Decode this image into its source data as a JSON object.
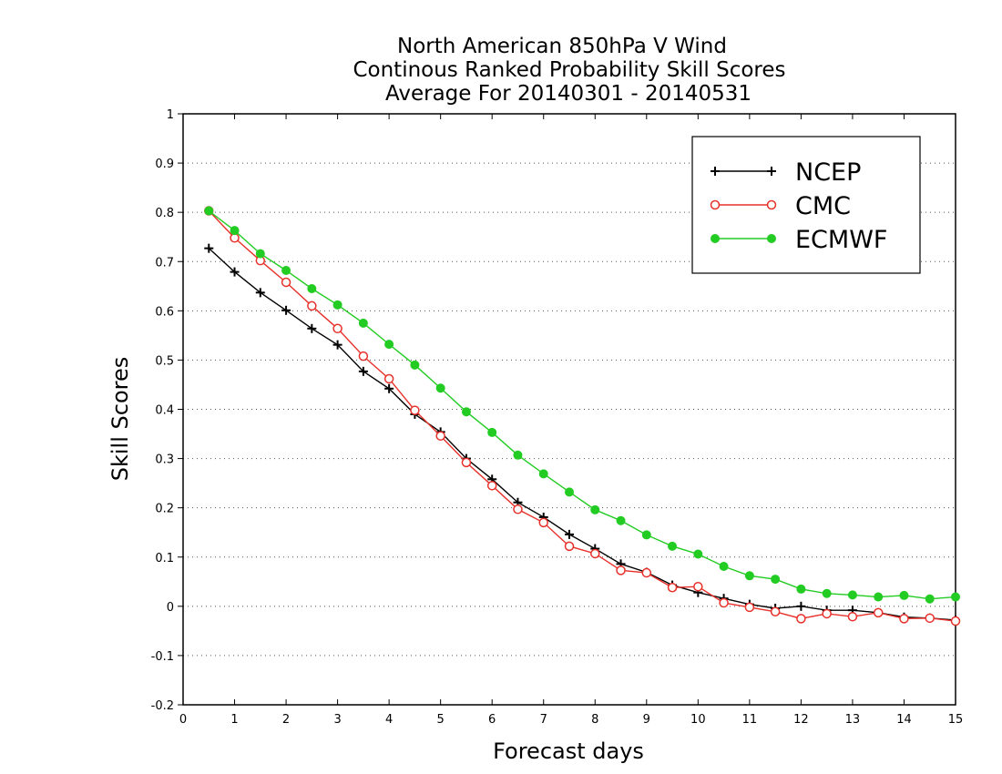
{
  "chart_data": {
    "type": "line",
    "title_lines": [
      "North American 850hPa V Wind",
      "Continous Ranked Probability Skill Scores",
      "Average For 20140301 - 20140531"
    ],
    "xlabel": "Forecast days",
    "ylabel": "Skill Scores",
    "xlim": [
      0,
      15
    ],
    "ylim": [
      -0.2,
      1
    ],
    "x_ticks": [
      0,
      1,
      2,
      3,
      4,
      5,
      6,
      7,
      8,
      9,
      10,
      11,
      12,
      13,
      14,
      15
    ],
    "x_tick_labels": [
      "0",
      "1",
      "2",
      "3",
      "4",
      "5",
      "6",
      "7",
      "8",
      "9",
      "10",
      "11",
      "12",
      "13",
      "14",
      "15"
    ],
    "y_ticks": [
      -0.2,
      -0.1,
      0,
      0.1,
      0.2,
      0.3,
      0.4,
      0.5,
      0.6,
      0.7,
      0.8,
      0.9,
      1
    ],
    "y_tick_labels": [
      "-0.2",
      "-0.1",
      "0",
      "0.1",
      "0.2",
      "0.3",
      "0.4",
      "0.5",
      "0.6",
      "0.7",
      "0.8",
      "0.9",
      "1"
    ],
    "grid": "horizontal dotted",
    "legend_position": "top-right",
    "x": [
      0.5,
      1,
      1.5,
      2,
      2.5,
      3,
      3.5,
      4,
      4.5,
      5,
      5.5,
      6,
      6.5,
      7,
      7.5,
      8,
      8.5,
      9,
      9.5,
      10,
      10.5,
      11,
      11.5,
      12,
      12.5,
      13,
      13.5,
      14,
      14.5,
      15
    ],
    "series": [
      {
        "name": "NCEP",
        "color": "#000000",
        "marker": "plus",
        "values": [
          0.727,
          0.679,
          0.637,
          0.601,
          0.564,
          0.531,
          0.477,
          0.442,
          0.39,
          0.354,
          0.3,
          0.258,
          0.211,
          0.181,
          0.146,
          0.117,
          0.086,
          0.069,
          0.043,
          0.028,
          0.016,
          0.004,
          -0.004,
          0.0,
          -0.008,
          -0.008,
          -0.013,
          -0.022,
          -0.024,
          -0.028
        ]
      },
      {
        "name": "CMC",
        "color": "#e8302a",
        "marker": "open-circle",
        "values": [
          0.803,
          0.748,
          0.702,
          0.658,
          0.61,
          0.564,
          0.508,
          0.462,
          0.398,
          0.346,
          0.292,
          0.245,
          0.197,
          0.17,
          0.122,
          0.107,
          0.073,
          0.068,
          0.038,
          0.04,
          0.007,
          -0.002,
          -0.011,
          -0.025,
          -0.015,
          -0.021,
          -0.013,
          -0.025,
          -0.024,
          -0.03
        ]
      },
      {
        "name": "ECMWF",
        "color": "#22cc22",
        "marker": "filled-circle",
        "values": [
          0.803,
          0.763,
          0.716,
          0.682,
          0.645,
          0.612,
          0.575,
          0.532,
          0.49,
          0.443,
          0.395,
          0.353,
          0.307,
          0.269,
          0.232,
          0.196,
          0.174,
          0.145,
          0.122,
          0.106,
          0.081,
          0.062,
          0.055,
          0.035,
          0.026,
          0.023,
          0.019,
          0.022,
          0.015,
          0.019
        ]
      }
    ]
  }
}
